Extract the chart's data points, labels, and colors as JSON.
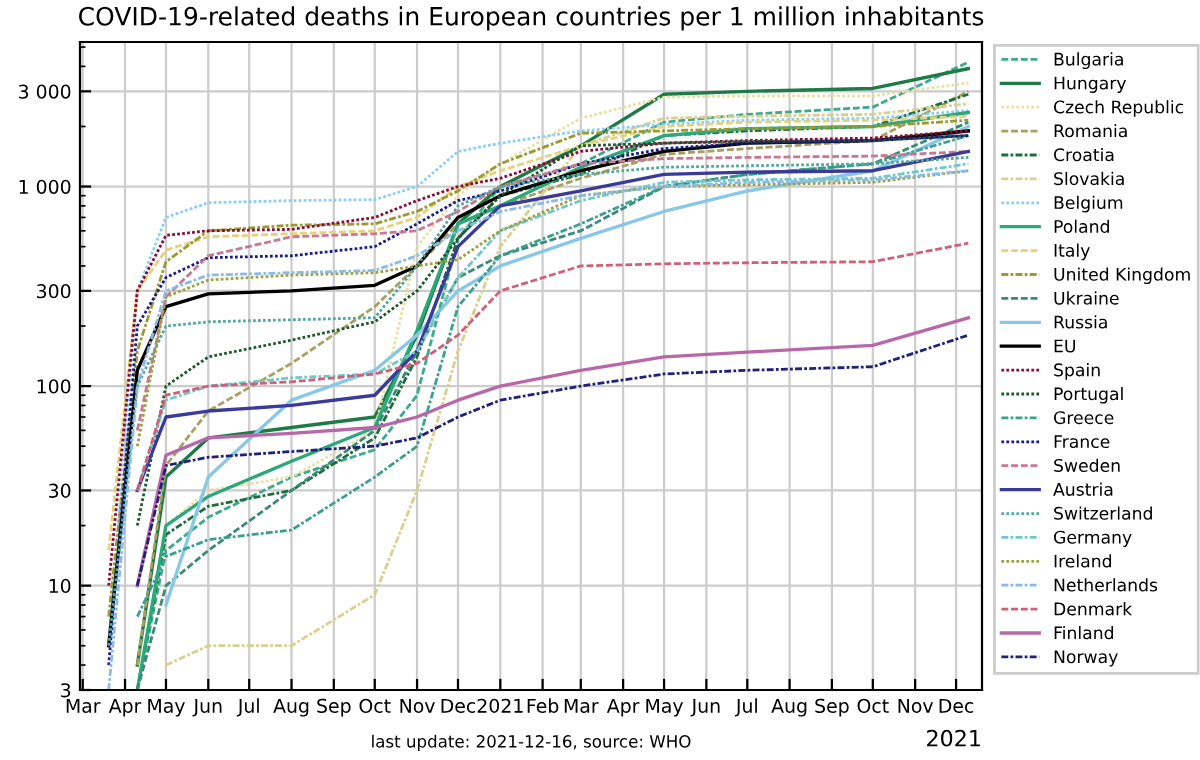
{
  "chart_data": {
    "type": "line",
    "title": "COVID-19-related deaths in European countries per 1 million inhabitants",
    "x": [
      "2020-03-20",
      "2020-04-10",
      "2020-05-01",
      "2020-06-01",
      "2020-08-01",
      "2020-10-01",
      "2020-11-01",
      "2020-12-01",
      "2021-01-01",
      "2021-03-01",
      "2021-05-01",
      "2021-07-01",
      "2021-10-01",
      "2021-12-10"
    ],
    "series": [
      {
        "name": "Bulgaria",
        "color": "#3caa8c",
        "line_style": "dashed",
        "values": [
          null,
          3,
          15,
          22,
          35,
          48,
          90,
          550,
          1000,
          1300,
          2100,
          2300,
          2500,
          4200
        ]
      },
      {
        "name": "Hungary",
        "color": "#1e7a46",
        "line_style": "solid",
        "values": [
          null,
          4,
          35,
          55,
          62,
          70,
          180,
          650,
          1000,
          1600,
          2900,
          3000,
          3100,
          3900
        ]
      },
      {
        "name": "Czech Republic",
        "color": "#e8e0a0",
        "line_style": "dotted",
        "values": [
          null,
          3,
          20,
          30,
          35,
          60,
          500,
          900,
          1300,
          2200,
          2800,
          2850,
          2850,
          3300
        ]
      },
      {
        "name": "Romania",
        "color": "#a8a060",
        "line_style": "dashed",
        "values": [
          null,
          4,
          40,
          75,
          130,
          250,
          400,
          650,
          800,
          1100,
          1450,
          1550,
          1700,
          3000
        ]
      },
      {
        "name": "Croatia",
        "color": "#1e6e3c",
        "line_style": "dashdot",
        "values": [
          null,
          3,
          18,
          25,
          30,
          55,
          140,
          550,
          900,
          1150,
          1800,
          1900,
          2000,
          2900
        ]
      },
      {
        "name": "Slovakia",
        "color": "#d8d08c",
        "line_style": "dashdot",
        "values": [
          null,
          null,
          4,
          5,
          5,
          9,
          30,
          150,
          500,
          1600,
          2200,
          2250,
          2300,
          2600
        ]
      },
      {
        "name": "Belgium",
        "color": "#87cefa",
        "line_style": "dotted",
        "values": [
          5,
          300,
          700,
          830,
          850,
          860,
          1000,
          1500,
          1650,
          1900,
          2050,
          2150,
          2200,
          2400
        ]
      },
      {
        "name": "Poland",
        "color": "#2ca87a",
        "line_style": "solid",
        "values": [
          null,
          3,
          20,
          28,
          42,
          62,
          190,
          650,
          800,
          1250,
          1800,
          1950,
          2000,
          2350
        ]
      },
      {
        "name": "Italy",
        "color": "#e6d27a",
        "line_style": "dashed",
        "values": [
          15,
          300,
          480,
          560,
          580,
          600,
          700,
          1000,
          1200,
          1600,
          2000,
          2100,
          2150,
          2250
        ]
      },
      {
        "name": "United Kingdom",
        "color": "#9a9a30",
        "line_style": "dashdot",
        "values": [
          7,
          150,
          420,
          600,
          640,
          650,
          750,
          950,
          1300,
          1850,
          1900,
          1950,
          2000,
          2150
        ]
      },
      {
        "name": "Ukraine",
        "color": "#3a8a7a",
        "line_style": "dashed",
        "values": [
          null,
          3,
          10,
          15,
          30,
          60,
          150,
          350,
          450,
          600,
          1000,
          1150,
          1300,
          2100
        ]
      },
      {
        "name": "Russia",
        "color": "#87c8e8",
        "line_style": "solid",
        "values": [
          null,
          null,
          8,
          35,
          85,
          120,
          180,
          300,
          400,
          550,
          750,
          950,
          1200,
          2000
        ]
      },
      {
        "name": "EU",
        "color": "#000000",
        "line_style": "solid",
        "values": [
          5,
          120,
          250,
          290,
          300,
          320,
          400,
          700,
          900,
          1200,
          1500,
          1650,
          1700,
          1900
        ]
      },
      {
        "name": "Spain",
        "color": "#8b0a3a",
        "line_style": "dotted",
        "values": [
          10,
          300,
          570,
          600,
          610,
          700,
          850,
          1000,
          1100,
          1500,
          1650,
          1700,
          1750,
          1900
        ]
      },
      {
        "name": "Portugal",
        "color": "#1a5a2a",
        "line_style": "dotted",
        "values": [
          null,
          20,
          100,
          140,
          170,
          210,
          300,
          550,
          900,
          1600,
          1650,
          1680,
          1700,
          1800
        ]
      },
      {
        "name": "Greece",
        "color": "#3aa090",
        "line_style": "dashdot",
        "values": [
          null,
          7,
          14,
          17,
          19,
          35,
          50,
          250,
          450,
          650,
          1000,
          1150,
          1300,
          1800
        ]
      },
      {
        "name": "France",
        "color": "#1a1a8c",
        "line_style": "dotted",
        "values": [
          4,
          200,
          350,
          440,
          450,
          500,
          650,
          850,
          950,
          1300,
          1550,
          1650,
          1700,
          1800
        ]
      },
      {
        "name": "Sweden",
        "color": "#c87890",
        "line_style": "dashed",
        "values": [
          null,
          60,
          280,
          450,
          560,
          580,
          600,
          750,
          1000,
          1300,
          1380,
          1400,
          1420,
          1500
        ]
      },
      {
        "name": "Austria",
        "color": "#3a3a9a",
        "line_style": "solid",
        "values": [
          null,
          30,
          70,
          75,
          80,
          90,
          150,
          500,
          800,
          950,
          1150,
          1180,
          1200,
          1500
        ]
      },
      {
        "name": "Switzerland",
        "color": "#50a8a0",
        "line_style": "dotted",
        "values": [
          5,
          100,
          200,
          210,
          215,
          220,
          400,
          800,
          1000,
          1150,
          1250,
          1270,
          1300,
          1400
        ]
      },
      {
        "name": "Germany",
        "color": "#70c8c8",
        "line_style": "dashdot",
        "values": [
          null,
          30,
          85,
          100,
          110,
          115,
          150,
          350,
          600,
          850,
          1050,
          1080,
          1100,
          1300
        ]
      },
      {
        "name": "Ireland",
        "color": "#a0a040",
        "line_style": "dotted",
        "values": [
          null,
          50,
          280,
          340,
          360,
          370,
          400,
          430,
          600,
          900,
          1000,
          1020,
          1050,
          1200
        ]
      },
      {
        "name": "Netherlands",
        "color": "#88bbe8",
        "line_style": "dashdot",
        "values": [
          3,
          100,
          300,
          360,
          370,
          380,
          450,
          600,
          750,
          900,
          1000,
          1050,
          1080,
          1200
        ]
      },
      {
        "name": "Denmark",
        "color": "#d0607a",
        "line_style": "dashed",
        "values": [
          null,
          30,
          90,
          100,
          105,
          115,
          130,
          180,
          300,
          400,
          410,
          415,
          420,
          520
        ]
      },
      {
        "name": "Finland",
        "color": "#b868a8",
        "line_style": "solid",
        "values": [
          null,
          10,
          45,
          55,
          58,
          62,
          70,
          85,
          100,
          120,
          140,
          148,
          160,
          220
        ]
      },
      {
        "name": "Norway",
        "color": "#20207a",
        "line_style": "dashdot",
        "values": [
          null,
          10,
          40,
          44,
          47,
          50,
          55,
          70,
          85,
          100,
          115,
          120,
          125,
          180
        ]
      }
    ],
    "log": "y",
    "ylim": [
      3,
      5300
    ],
    "yticks": [
      3,
      10,
      30,
      100,
      300,
      {
        "value": 1000,
        "label": "1 000"
      },
      {
        "value": 3000,
        "label": "3 000"
      }
    ],
    "xlim": [
      "2020-02-28",
      "2021-12-20"
    ],
    "xticks": [
      {
        "value": "2020-03-01",
        "label": "Mar"
      },
      {
        "value": "2020-04-01",
        "label": "Apr"
      },
      {
        "value": "2020-05-01",
        "label": "May"
      },
      {
        "value": "2020-06-01",
        "label": "Jun"
      },
      {
        "value": "2020-07-01",
        "label": "Jul"
      },
      {
        "value": "2020-08-01",
        "label": "Aug"
      },
      {
        "value": "2020-09-01",
        "label": "Sep"
      },
      {
        "value": "2020-10-01",
        "label": "Oct"
      },
      {
        "value": "2020-11-01",
        "label": "Nov"
      },
      {
        "value": "2020-12-01",
        "label": "Dec"
      },
      {
        "value": "2021-01-01",
        "label": "2021"
      },
      {
        "value": "2021-02-01",
        "label": "Feb"
      },
      {
        "value": "2021-03-01",
        "label": "Mar"
      },
      {
        "value": "2021-04-01",
        "label": "Apr"
      },
      {
        "value": "2021-05-01",
        "label": "May"
      },
      {
        "value": "2021-06-01",
        "label": "Jun"
      },
      {
        "value": "2021-07-01",
        "label": "Jul"
      },
      {
        "value": "2021-08-01",
        "label": "Aug"
      },
      {
        "value": "2021-09-01",
        "label": "Sep"
      },
      {
        "value": "2021-10-01",
        "label": "Oct"
      },
      {
        "value": "2021-11-01",
        "label": "Nov"
      },
      {
        "value": "2021-12-01",
        "label": "Dec"
      }
    ],
    "grid": true,
    "legend": "right",
    "annotations": [
      "last update: 2021-12-16, source: WHO",
      "2021"
    ]
  }
}
